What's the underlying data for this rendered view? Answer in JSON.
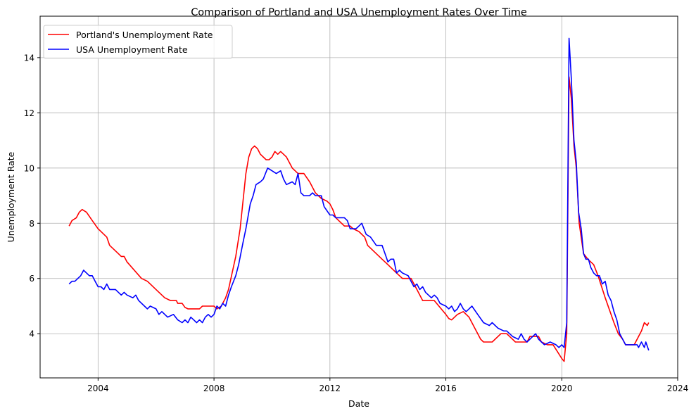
{
  "chart_data": {
    "type": "line",
    "title": "Comparison of Portland and USA Unemployment Rates Over Time",
    "xlabel": "Date",
    "ylabel": "Unemployment Rate",
    "xlim": [
      2002.0,
      2024.0
    ],
    "ylim": [
      2.4,
      15.5
    ],
    "xticks": [
      2004,
      2008,
      2012,
      2016,
      2020,
      2024
    ],
    "xtick_labels": [
      "2004",
      "2008",
      "2012",
      "2016",
      "2020",
      "2024"
    ],
    "yticks": [
      4,
      6,
      8,
      10,
      12,
      14
    ],
    "ytick_labels": [
      "4",
      "6",
      "8",
      "10",
      "12",
      "14"
    ],
    "grid": true,
    "legend_position": "top-left",
    "series": [
      {
        "name": "Portland's Unemployment Rate",
        "color": "#ff0000",
        "points": [
          [
            2003.0,
            7.9
          ],
          [
            2003.1,
            8.1
          ],
          [
            2003.25,
            8.2
          ],
          [
            2003.35,
            8.4
          ],
          [
            2003.45,
            8.5
          ],
          [
            2003.6,
            8.4
          ],
          [
            2003.8,
            8.1
          ],
          [
            2004.0,
            7.8
          ],
          [
            2004.3,
            7.5
          ],
          [
            2004.4,
            7.2
          ],
          [
            2004.7,
            6.9
          ],
          [
            2004.8,
            6.8
          ],
          [
            2004.9,
            6.8
          ],
          [
            2005.0,
            6.6
          ],
          [
            2005.5,
            6.0
          ],
          [
            2005.7,
            5.9
          ],
          [
            2005.8,
            5.8
          ],
          [
            2006.0,
            5.6
          ],
          [
            2006.3,
            5.3
          ],
          [
            2006.5,
            5.2
          ],
          [
            2006.7,
            5.2
          ],
          [
            2006.75,
            5.1
          ],
          [
            2006.9,
            5.1
          ],
          [
            2007.0,
            4.95
          ],
          [
            2007.1,
            4.9
          ],
          [
            2007.5,
            4.9
          ],
          [
            2007.6,
            5.0
          ],
          [
            2008.0,
            5.0
          ],
          [
            2008.1,
            4.9
          ],
          [
            2008.25,
            5.0
          ],
          [
            2008.4,
            5.3
          ],
          [
            2008.5,
            5.6
          ],
          [
            2008.75,
            6.8
          ],
          [
            2008.9,
            7.8
          ],
          [
            2009.0,
            8.8
          ],
          [
            2009.1,
            9.8
          ],
          [
            2009.2,
            10.4
          ],
          [
            2009.3,
            10.7
          ],
          [
            2009.4,
            10.8
          ],
          [
            2009.5,
            10.7
          ],
          [
            2009.6,
            10.5
          ],
          [
            2009.8,
            10.3
          ],
          [
            2009.9,
            10.3
          ],
          [
            2010.0,
            10.4
          ],
          [
            2010.1,
            10.6
          ],
          [
            2010.2,
            10.5
          ],
          [
            2010.3,
            10.6
          ],
          [
            2010.5,
            10.4
          ],
          [
            2010.7,
            10.0
          ],
          [
            2010.9,
            9.8
          ],
          [
            2011.1,
            9.8
          ],
          [
            2011.3,
            9.5
          ],
          [
            2011.5,
            9.1
          ],
          [
            2011.6,
            9.0
          ],
          [
            2011.7,
            8.9
          ],
          [
            2011.9,
            8.8
          ],
          [
            2012.0,
            8.7
          ],
          [
            2012.1,
            8.5
          ],
          [
            2012.2,
            8.2
          ],
          [
            2012.5,
            7.9
          ],
          [
            2012.7,
            7.9
          ],
          [
            2012.8,
            7.8
          ],
          [
            2013.0,
            7.7
          ],
          [
            2013.2,
            7.5
          ],
          [
            2013.3,
            7.2
          ],
          [
            2013.8,
            6.7
          ],
          [
            2014.0,
            6.5
          ],
          [
            2014.1,
            6.4
          ],
          [
            2014.3,
            6.2
          ],
          [
            2014.5,
            6.0
          ],
          [
            2014.8,
            6.0
          ],
          [
            2015.0,
            5.6
          ],
          [
            2015.2,
            5.2
          ],
          [
            2015.6,
            5.2
          ],
          [
            2016.0,
            4.7
          ],
          [
            2016.1,
            4.55
          ],
          [
            2016.2,
            4.5
          ],
          [
            2016.4,
            4.7
          ],
          [
            2016.6,
            4.8
          ],
          [
            2016.8,
            4.6
          ],
          [
            2017.0,
            4.2
          ],
          [
            2017.2,
            3.8
          ],
          [
            2017.3,
            3.7
          ],
          [
            2017.6,
            3.7
          ],
          [
            2017.9,
            4.0
          ],
          [
            2018.1,
            4.0
          ],
          [
            2018.3,
            3.8
          ],
          [
            2018.4,
            3.7
          ],
          [
            2018.8,
            3.7
          ],
          [
            2018.9,
            3.9
          ],
          [
            2019.2,
            3.9
          ],
          [
            2019.3,
            3.7
          ],
          [
            2019.5,
            3.6
          ],
          [
            2019.7,
            3.6
          ],
          [
            2020.0,
            3.1
          ],
          [
            2020.08,
            3.0
          ],
          [
            2020.17,
            4.0
          ],
          [
            2020.25,
            13.3
          ],
          [
            2020.33,
            12.5
          ],
          [
            2020.42,
            10.8
          ],
          [
            2020.5,
            10.0
          ],
          [
            2020.6,
            8.0
          ],
          [
            2020.75,
            6.9
          ],
          [
            2020.9,
            6.7
          ],
          [
            2021.0,
            6.6
          ],
          [
            2021.1,
            6.5
          ],
          [
            2021.25,
            6.1
          ],
          [
            2021.5,
            5.3
          ],
          [
            2021.8,
            4.4
          ],
          [
            2021.95,
            4.0
          ],
          [
            2022.1,
            3.8
          ],
          [
            2022.2,
            3.6
          ],
          [
            2022.5,
            3.6
          ],
          [
            2022.6,
            3.8
          ],
          [
            2022.75,
            4.1
          ],
          [
            2022.85,
            4.4
          ],
          [
            2022.95,
            4.3
          ],
          [
            2023.0,
            4.4
          ]
        ]
      },
      {
        "name": "USA Unemployment Rate",
        "color": "#0000ff",
        "points": [
          [
            2003.0,
            5.8
          ],
          [
            2003.1,
            5.9
          ],
          [
            2003.2,
            5.9
          ],
          [
            2003.4,
            6.1
          ],
          [
            2003.5,
            6.3
          ],
          [
            2003.6,
            6.2
          ],
          [
            2003.7,
            6.1
          ],
          [
            2003.8,
            6.1
          ],
          [
            2003.9,
            5.9
          ],
          [
            2004.0,
            5.7
          ],
          [
            2004.1,
            5.7
          ],
          [
            2004.2,
            5.6
          ],
          [
            2004.3,
            5.8
          ],
          [
            2004.4,
            5.6
          ],
          [
            2004.6,
            5.6
          ],
          [
            2004.8,
            5.4
          ],
          [
            2004.9,
            5.5
          ],
          [
            2005.0,
            5.4
          ],
          [
            2005.2,
            5.3
          ],
          [
            2005.3,
            5.4
          ],
          [
            2005.4,
            5.2
          ],
          [
            2005.6,
            5.0
          ],
          [
            2005.7,
            4.9
          ],
          [
            2005.8,
            5.0
          ],
          [
            2006.0,
            4.9
          ],
          [
            2006.1,
            4.7
          ],
          [
            2006.2,
            4.8
          ],
          [
            2006.4,
            4.6
          ],
          [
            2006.6,
            4.7
          ],
          [
            2006.75,
            4.5
          ],
          [
            2006.9,
            4.4
          ],
          [
            2007.0,
            4.5
          ],
          [
            2007.1,
            4.4
          ],
          [
            2007.2,
            4.6
          ],
          [
            2007.3,
            4.5
          ],
          [
            2007.4,
            4.4
          ],
          [
            2007.5,
            4.5
          ],
          [
            2007.6,
            4.4
          ],
          [
            2007.7,
            4.6
          ],
          [
            2007.8,
            4.7
          ],
          [
            2007.9,
            4.6
          ],
          [
            2008.0,
            4.7
          ],
          [
            2008.1,
            5.0
          ],
          [
            2008.2,
            4.9
          ],
          [
            2008.3,
            5.1
          ],
          [
            2008.4,
            5.0
          ],
          [
            2008.5,
            5.4
          ],
          [
            2008.6,
            5.7
          ],
          [
            2008.75,
            6.1
          ],
          [
            2008.85,
            6.5
          ],
          [
            2009.0,
            7.3
          ],
          [
            2009.1,
            7.8
          ],
          [
            2009.25,
            8.7
          ],
          [
            2009.35,
            9.0
          ],
          [
            2009.45,
            9.4
          ],
          [
            2009.6,
            9.5
          ],
          [
            2009.7,
            9.6
          ],
          [
            2009.85,
            10.0
          ],
          [
            2010.0,
            9.9
          ],
          [
            2010.15,
            9.8
          ],
          [
            2010.3,
            9.9
          ],
          [
            2010.4,
            9.6
          ],
          [
            2010.5,
            9.4
          ],
          [
            2010.7,
            9.5
          ],
          [
            2010.8,
            9.4
          ],
          [
            2010.9,
            9.8
          ],
          [
            2011.0,
            9.1
          ],
          [
            2011.1,
            9.0
          ],
          [
            2011.3,
            9.0
          ],
          [
            2011.4,
            9.1
          ],
          [
            2011.5,
            9.0
          ],
          [
            2011.7,
            9.0
          ],
          [
            2011.8,
            8.6
          ],
          [
            2012.0,
            8.3
          ],
          [
            2012.1,
            8.3
          ],
          [
            2012.2,
            8.2
          ],
          [
            2012.5,
            8.2
          ],
          [
            2012.6,
            8.1
          ],
          [
            2012.7,
            7.8
          ],
          [
            2012.9,
            7.8
          ],
          [
            2013.0,
            7.9
          ],
          [
            2013.1,
            8.0
          ],
          [
            2013.25,
            7.6
          ],
          [
            2013.4,
            7.5
          ],
          [
            2013.6,
            7.2
          ],
          [
            2013.8,
            7.2
          ],
          [
            2013.9,
            6.9
          ],
          [
            2014.0,
            6.6
          ],
          [
            2014.1,
            6.7
          ],
          [
            2014.2,
            6.7
          ],
          [
            2014.3,
            6.2
          ],
          [
            2014.4,
            6.3
          ],
          [
            2014.5,
            6.2
          ],
          [
            2014.7,
            6.1
          ],
          [
            2014.8,
            5.9
          ],
          [
            2014.9,
            5.7
          ],
          [
            2015.0,
            5.8
          ],
          [
            2015.1,
            5.6
          ],
          [
            2015.2,
            5.7
          ],
          [
            2015.3,
            5.5
          ],
          [
            2015.5,
            5.3
          ],
          [
            2015.6,
            5.4
          ],
          [
            2015.7,
            5.3
          ],
          [
            2015.8,
            5.1
          ],
          [
            2016.0,
            5.0
          ],
          [
            2016.1,
            4.9
          ],
          [
            2016.2,
            5.0
          ],
          [
            2016.3,
            4.8
          ],
          [
            2016.4,
            4.9
          ],
          [
            2016.5,
            5.1
          ],
          [
            2016.6,
            4.9
          ],
          [
            2016.7,
            4.8
          ],
          [
            2016.8,
            4.9
          ],
          [
            2016.9,
            5.0
          ],
          [
            2017.1,
            4.7
          ],
          [
            2017.3,
            4.4
          ],
          [
            2017.5,
            4.3
          ],
          [
            2017.6,
            4.4
          ],
          [
            2017.8,
            4.2
          ],
          [
            2018.0,
            4.1
          ],
          [
            2018.1,
            4.1
          ],
          [
            2018.3,
            3.9
          ],
          [
            2018.5,
            3.8
          ],
          [
            2018.6,
            4.0
          ],
          [
            2018.7,
            3.8
          ],
          [
            2018.8,
            3.7
          ],
          [
            2018.9,
            3.8
          ],
          [
            2019.0,
            3.9
          ],
          [
            2019.1,
            4.0
          ],
          [
            2019.2,
            3.8
          ],
          [
            2019.3,
            3.7
          ],
          [
            2019.4,
            3.6
          ],
          [
            2019.6,
            3.7
          ],
          [
            2019.8,
            3.6
          ],
          [
            2019.9,
            3.5
          ],
          [
            2020.0,
            3.6
          ],
          [
            2020.08,
            3.5
          ],
          [
            2020.17,
            4.4
          ],
          [
            2020.25,
            14.7
          ],
          [
            2020.33,
            13.2
          ],
          [
            2020.42,
            11.0
          ],
          [
            2020.5,
            10.2
          ],
          [
            2020.58,
            8.4
          ],
          [
            2020.67,
            7.8
          ],
          [
            2020.75,
            6.9
          ],
          [
            2020.83,
            6.7
          ],
          [
            2020.92,
            6.7
          ],
          [
            2021.0,
            6.4
          ],
          [
            2021.1,
            6.2
          ],
          [
            2021.2,
            6.1
          ],
          [
            2021.3,
            6.1
          ],
          [
            2021.4,
            5.8
          ],
          [
            2021.5,
            5.9
          ],
          [
            2021.6,
            5.4
          ],
          [
            2021.7,
            5.2
          ],
          [
            2021.8,
            4.8
          ],
          [
            2021.9,
            4.5
          ],
          [
            2022.0,
            4.0
          ],
          [
            2022.1,
            3.8
          ],
          [
            2022.2,
            3.6
          ],
          [
            2022.6,
            3.6
          ],
          [
            2022.65,
            3.5
          ],
          [
            2022.75,
            3.7
          ],
          [
            2022.85,
            3.5
          ],
          [
            2022.9,
            3.7
          ],
          [
            2023.0,
            3.4
          ]
        ]
      }
    ]
  }
}
